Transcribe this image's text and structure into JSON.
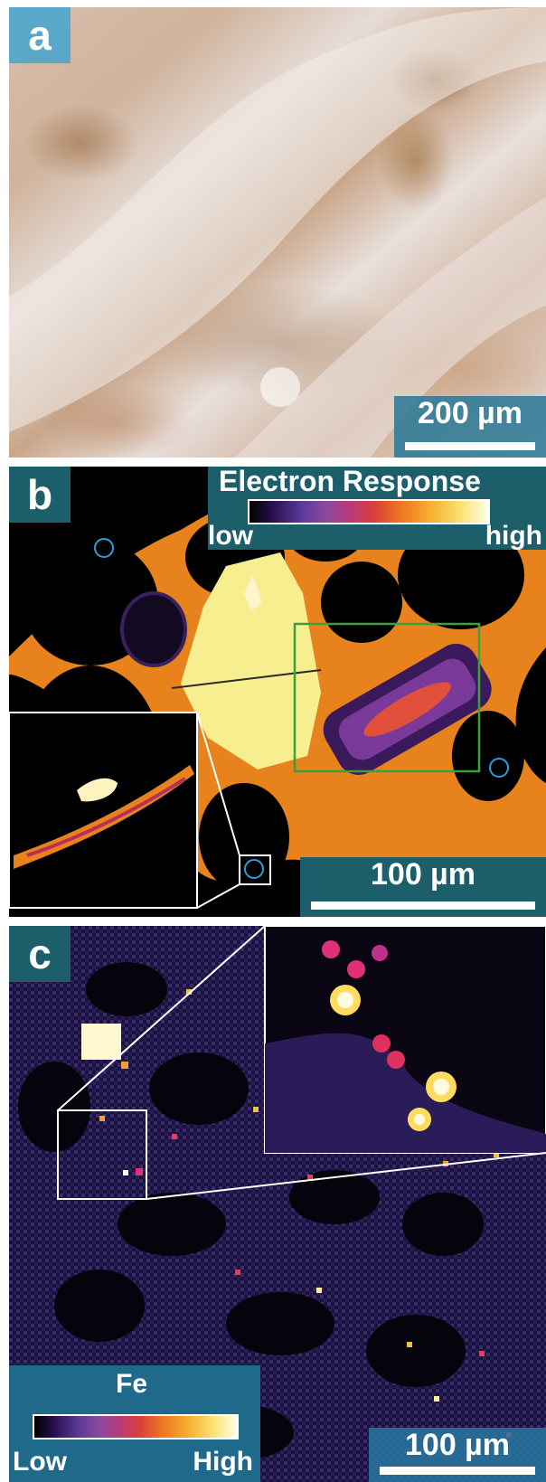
{
  "panel_a": {
    "letter": "a",
    "scale_label": "200 µm"
  },
  "panel_b": {
    "letter": "b",
    "colorbar_title": "Electron Response",
    "colorbar_low": "low",
    "colorbar_high": "high",
    "scale_label": "100 µm"
  },
  "panel_c": {
    "letter": "c",
    "element": "Fe",
    "colorbar_low": "Low",
    "colorbar_high": "High",
    "scale_label": "100 µm"
  },
  "colors": {
    "label_teal": "#1d5e6b",
    "label_blue": "#5aa8c8",
    "matrix_orange": "#f08a20",
    "crystal_yellow": "#f7ee90",
    "zoom_box_green": "#3aa03a",
    "marker_circle_blue": "#2a9fd8"
  }
}
